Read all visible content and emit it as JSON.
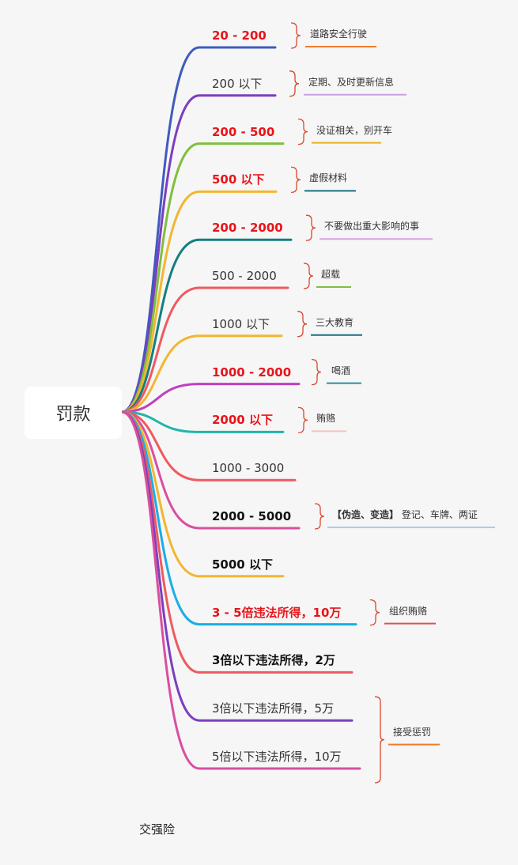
{
  "root": {
    "label": "罚款"
  },
  "branches": [
    {
      "label": "20 - 200",
      "style": "red",
      "color": "#3f5bbf"
    },
    {
      "label": "200 以下",
      "style": "normal",
      "color": "#7b3fbf"
    },
    {
      "label": "200 - 500",
      "style": "red",
      "color": "#7fbf3f"
    },
    {
      "label": "500 以下",
      "style": "red",
      "color": "#f2b630"
    },
    {
      "label": "200 - 2000",
      "style": "red",
      "color": "#137f7f"
    },
    {
      "label": "500 - 2000",
      "style": "normal",
      "color": "#ef5a5f"
    },
    {
      "label": "1000 以下",
      "style": "normal",
      "color": "#f2b630"
    },
    {
      "label": "1000 - 2000",
      "style": "red",
      "color": "#bf3fbf"
    },
    {
      "label": "2000 以下",
      "style": "red",
      "color": "#1fb5ad"
    },
    {
      "label": "1000 - 3000",
      "style": "normal",
      "color": "#ef5a5f"
    },
    {
      "label": "2000 - 5000",
      "style": "dark",
      "color": "#d94fa0"
    },
    {
      "label": "5000 以下",
      "style": "dark",
      "color": "#f2b630"
    },
    {
      "label": "3 - 5倍违法所得，10万",
      "style": "red",
      "color": "#19aee6"
    },
    {
      "label": "3倍以下违法所得，2万",
      "style": "dark",
      "color": "#ef5a5f"
    },
    {
      "label": "3倍以下违法所得，5万",
      "style": "normal",
      "color": "#7b3fbf"
    },
    {
      "label": "5倍以下违法所得，10万",
      "style": "normal",
      "color": "#d94fa0"
    }
  ],
  "notes": [
    {
      "branch": 0,
      "text": "道路安全行驶",
      "underline": "#f07c2a"
    },
    {
      "branch": 1,
      "text": "定期、及时更新信息",
      "underline": "#c9a0e0"
    },
    {
      "branch": 2,
      "text": "没证相关，别开车",
      "underline": "#e8b020"
    },
    {
      "branch": 3,
      "text": "虚假材料",
      "underline": "#1b6f7f"
    },
    {
      "branch": 4,
      "text": "不要做出重大影响的事",
      "underline": "#d9a0e8"
    },
    {
      "branch": 5,
      "text": "超载",
      "underline": "#7fbf3f"
    },
    {
      "branch": 6,
      "text": "三大教育",
      "underline": "#1b6f7f"
    },
    {
      "branch": 7,
      "text": "喝酒",
      "underline": "#2a8fa0"
    },
    {
      "branch": 8,
      "text": "贿赂",
      "underline": "#f5c0c0"
    },
    {
      "branch": 10,
      "bold_text": "【伪造、变造】",
      "text": "登记、车牌、两证",
      "underline": "#9fd0f0"
    },
    {
      "branch": 12,
      "text": "组织贿赂",
      "underline": "#e05050"
    },
    {
      "branch": 14,
      "span_to": 15,
      "text": "接受惩罚",
      "underline": "#f07c2a"
    }
  ],
  "footer": {
    "text": "交强险"
  },
  "brace_color": "#d9482b"
}
